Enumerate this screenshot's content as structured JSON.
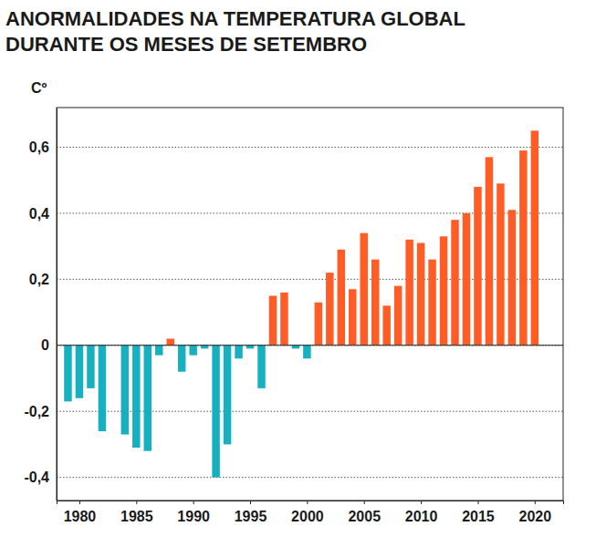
{
  "chart_data": {
    "type": "bar",
    "title": [
      "ANORMALIDADES NA TEMPERATURA GLOBAL",
      "DURANTE OS MESES DE SETEMBRO"
    ],
    "ylabel": "Cº",
    "x": [
      1979,
      1980,
      1981,
      1982,
      1983,
      1984,
      1985,
      1986,
      1987,
      1988,
      1989,
      1990,
      1991,
      1992,
      1993,
      1994,
      1995,
      1996,
      1997,
      1998,
      1999,
      2000,
      2001,
      2002,
      2003,
      2004,
      2005,
      2006,
      2007,
      2008,
      2009,
      2010,
      2011,
      2012,
      2013,
      2014,
      2015,
      2016,
      2017,
      2018,
      2019,
      2020
    ],
    "values": [
      -0.17,
      -0.16,
      -0.13,
      -0.26,
      0,
      -0.27,
      -0.31,
      -0.32,
      -0.03,
      0.02,
      -0.08,
      -0.03,
      -0.01,
      -0.4,
      -0.3,
      -0.04,
      -0.01,
      -0.13,
      0.15,
      0.16,
      -0.01,
      -0.04,
      0.13,
      0.22,
      0.29,
      0.17,
      0.34,
      0.26,
      0.12,
      0.18,
      0.32,
      0.31,
      0.26,
      0.33,
      0.38,
      0.4,
      0.48,
      0.57,
      0.49,
      0.41,
      0.59,
      0.65
    ],
    "colors": [
      "#17b0c0",
      "#17b0c0",
      "#17b0c0",
      "#17b0c0",
      "#17b0c0",
      "#17b0c0",
      "#17b0c0",
      "#17b0c0",
      "#17b0c0",
      "#ff5c26",
      "#17b0c0",
      "#17b0c0",
      "#17b0c0",
      "#17b0c0",
      "#17b0c0",
      "#17b0c0",
      "#17b0c0",
      "#17b0c0",
      "#ff5c26",
      "#ff5c26",
      "#17b0c0",
      "#17b0c0",
      "#ff5c26",
      "#ff5c26",
      "#ff5c26",
      "#ff5c26",
      "#ff5c26",
      "#ff5c26",
      "#ff5c26",
      "#ff5c26",
      "#ff5c26",
      "#ff5c26",
      "#ff5c26",
      "#ff5c26",
      "#ff5c26",
      "#ff5c26",
      "#ff5c26",
      "#ff5c26",
      "#ff5c26",
      "#ff5c26",
      "#ff5c26",
      "#ff5c26"
    ],
    "xlim": [
      1978,
      2022.5
    ],
    "xticks": [
      1980,
      1985,
      1990,
      1995,
      2000,
      2005,
      2010,
      2015,
      2020
    ],
    "ylim": [
      -0.47,
      0.72
    ],
    "yticks": [
      {
        "value": -0.4,
        "label": "-0,4"
      },
      {
        "value": -0.2,
        "label": "-0,2"
      },
      0,
      {
        "value": 0.2,
        "label": "0,2"
      },
      {
        "value": 0.4,
        "label": "0,4"
      },
      {
        "value": 0.6,
        "label": "0,6"
      }
    ],
    "grid": true
  }
}
